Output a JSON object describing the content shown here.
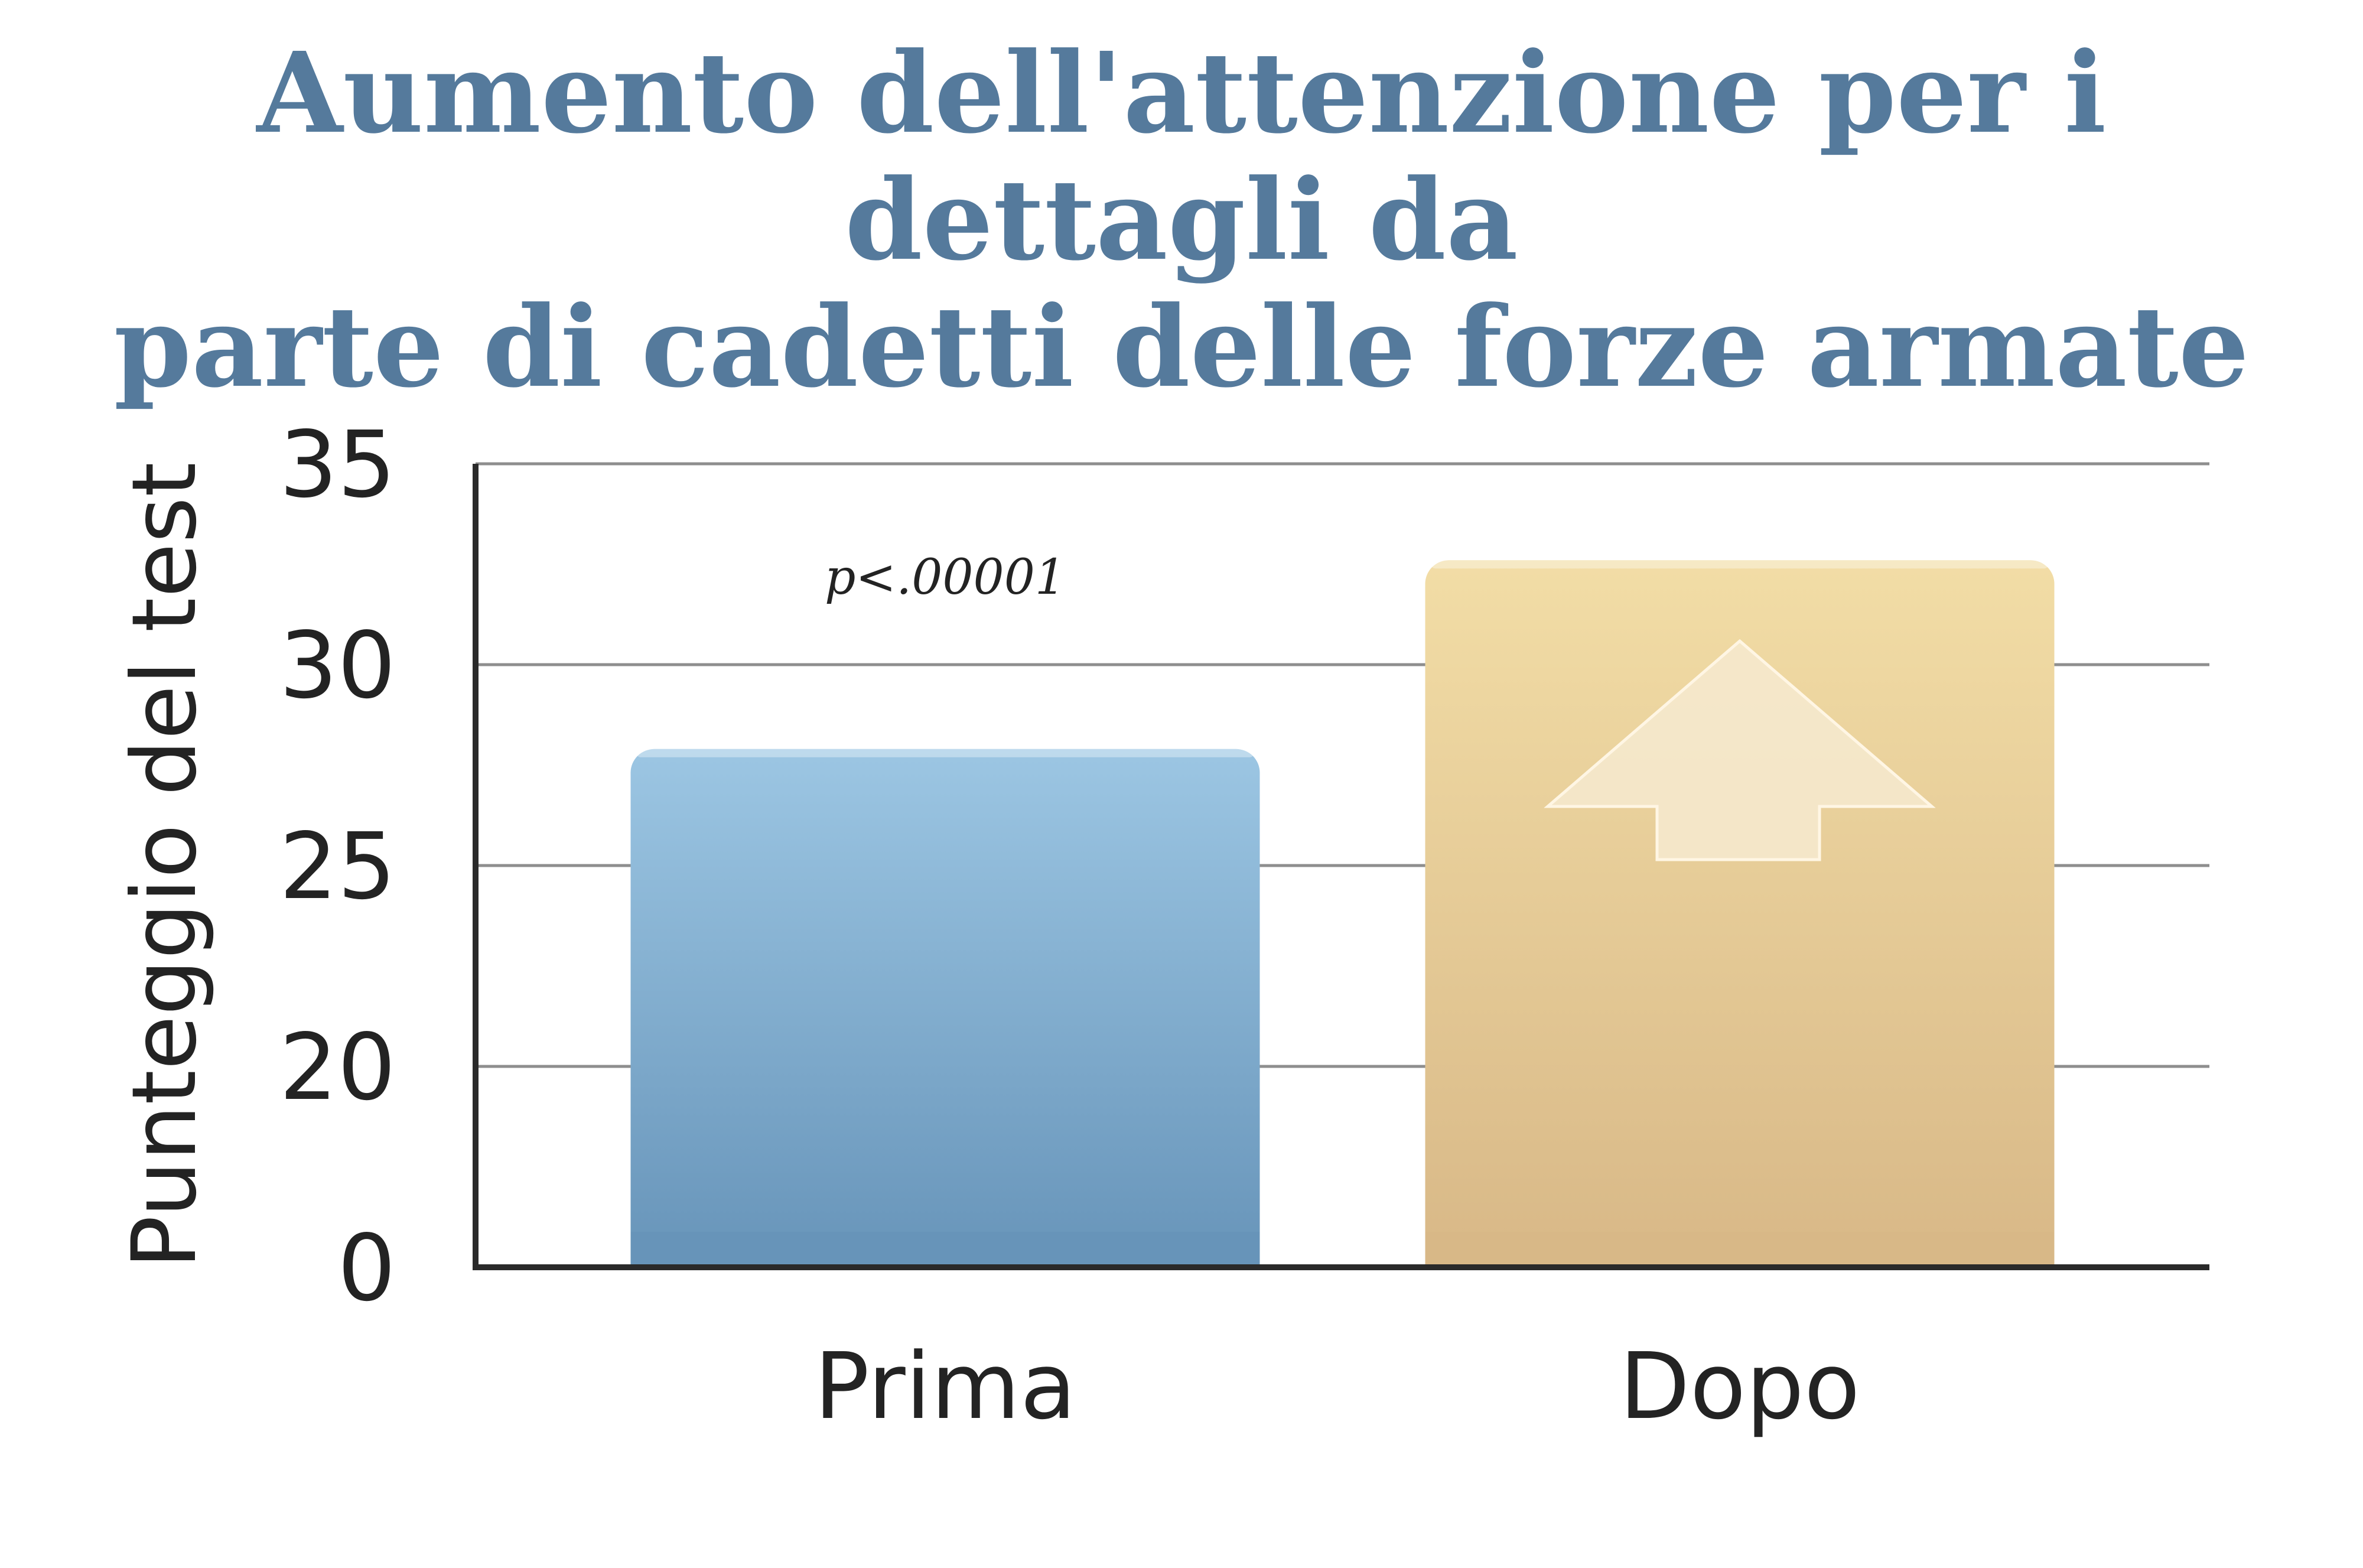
{
  "chart_data": {
    "type": "bar",
    "title_lines": [
      "Aumento dell'attenzione per i dettagli da",
      "parte di cadetti delle forze armate"
    ],
    "xlabel": "",
    "ylabel": "Punteggio del test",
    "categories": [
      "Prima",
      "Dopo"
    ],
    "values": [
      27.9,
      32.6
    ],
    "y_ticks": [
      "0",
      "20",
      "25",
      "30",
      "35"
    ],
    "y_tick_values": [
      15,
      20,
      25,
      30,
      35
    ],
    "ylim": [
      15,
      35
    ],
    "axis_break": "y-axis starts at 0 but jumps to 20 (axis break)",
    "grid": true,
    "annotation": "p<.00001",
    "bar_colors": [
      "#6f9cc2",
      "#e6cb94"
    ],
    "annotation_arrow": "up-arrow-on-dopo-bar"
  }
}
